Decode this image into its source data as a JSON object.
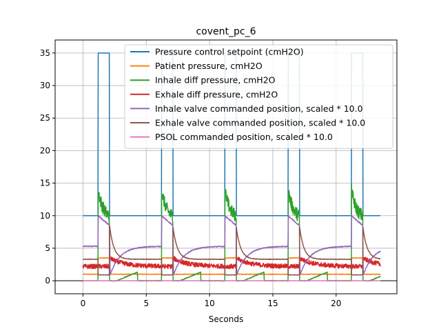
{
  "chart_data": {
    "type": "line",
    "title": "covent_pc_6",
    "xlabel": "Seconds",
    "ylabel": "",
    "xlim": [
      -2.2,
      24.8
    ],
    "ylim": [
      -2,
      37
    ],
    "xticks": [
      0,
      5,
      10,
      15,
      20
    ],
    "yticks": [
      0,
      5,
      10,
      15,
      20,
      25,
      30,
      35
    ],
    "grid": true,
    "legend_position": "upper-right",
    "series": [
      {
        "name": "Pressure control setpoint (cmH2O)",
        "color": "#1f77b4"
      },
      {
        "name": "Patient pressure, cmH2O",
        "color": "#ff7f0e"
      },
      {
        "name": "Inhale diff pressure, cmH2O",
        "color": "#2ca02c"
      },
      {
        "name": "Exhale diff pressure, cmH2O",
        "color": "#d62728"
      },
      {
        "name": "Inhale valve commanded position, scaled * 10.0",
        "color": "#9467bd"
      },
      {
        "name": "Exhale valve commanded position, scaled * 10.0",
        "color": "#8c564b"
      },
      {
        "name": "PSOL commanded position, scaled * 10.0",
        "color": "#e377c2"
      }
    ],
    "data_range_x": [
      0,
      23.5
    ],
    "breath_cycles": [
      {
        "inhale_start": 1.2,
        "inhale_end": 2.1
      },
      {
        "inhale_start": 6.2,
        "inhale_end": 7.1
      },
      {
        "inhale_start": 11.2,
        "inhale_end": 12.1
      },
      {
        "inhale_start": 16.2,
        "inhale_end": 17.1
      },
      {
        "inhale_start": 21.2,
        "inhale_end": 22.1
      }
    ],
    "levels": {
      "setpoint_peep": 10,
      "setpoint_pip": 35,
      "patient_pressure_baseline": 1,
      "patient_pressure_inhale": 3.5,
      "inhale_diff_peak": 14,
      "inhale_diff_baseline": 0,
      "exhale_diff_baseline": 2.2,
      "exhale_diff_peak": 3.5,
      "inhale_valve_baseline": 5.3,
      "inhale_valve_peak": 10,
      "exhale_valve_baseline": 3.3,
      "exhale_valve_peak": 8.5,
      "psol_baseline": 0
    }
  }
}
